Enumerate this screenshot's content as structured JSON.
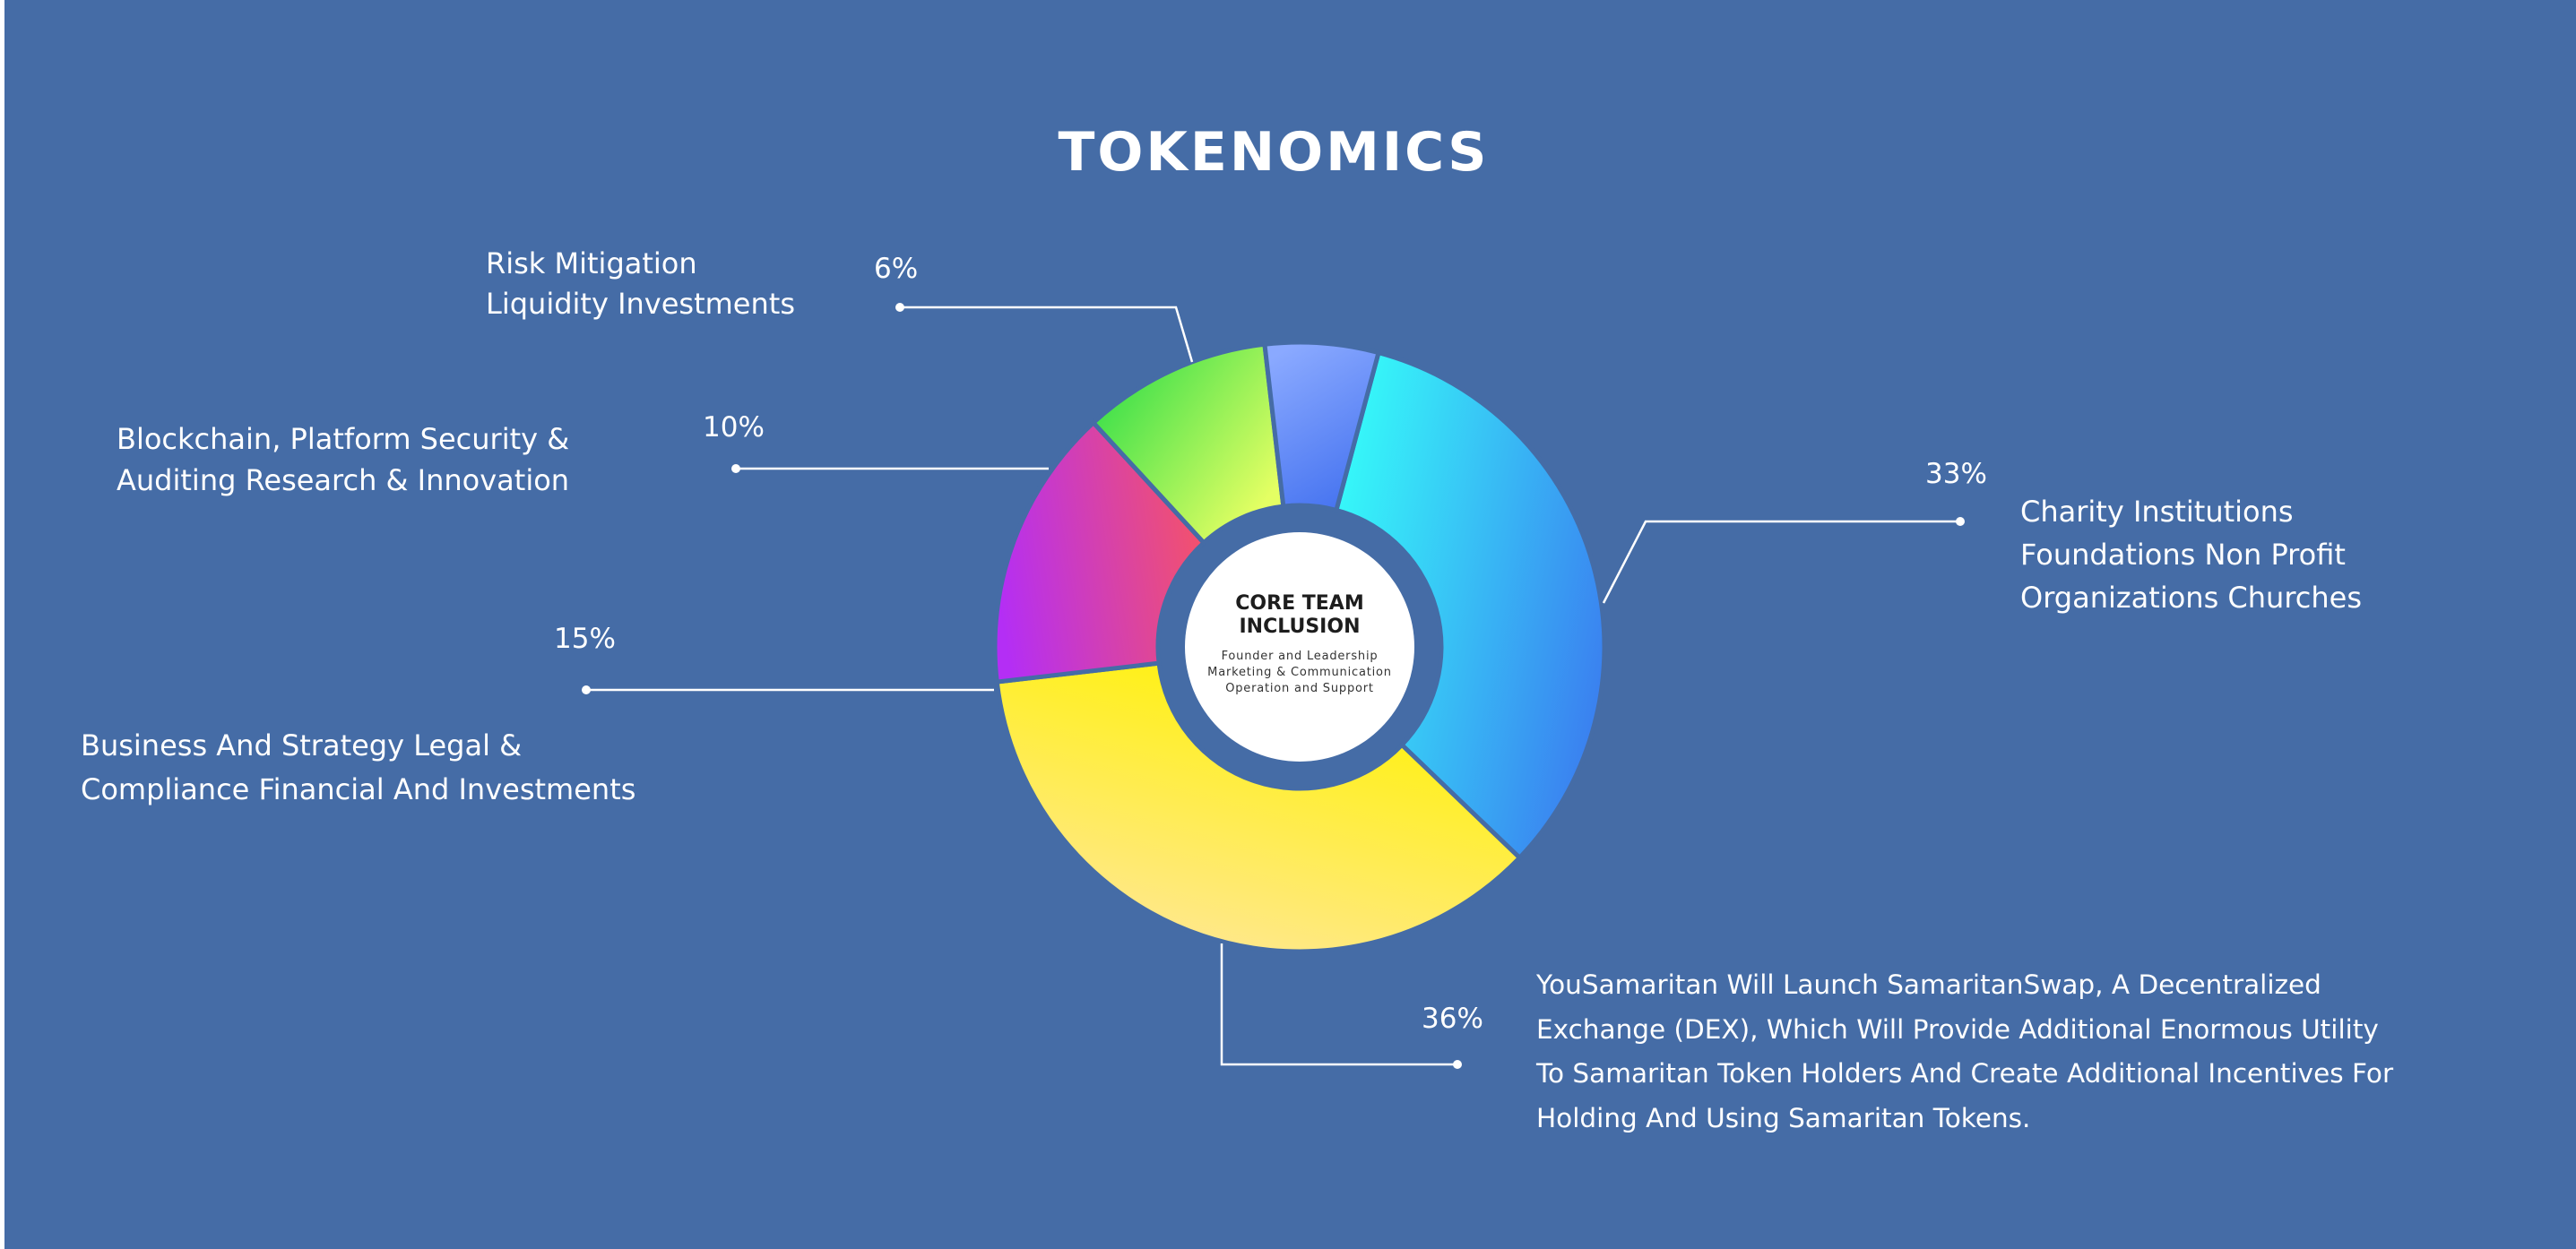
{
  "title": "TOKENOMICS",
  "center": {
    "title_lines": [
      "CORE TEAM",
      "INCLUSION"
    ],
    "sub_lines": [
      "Founder and Leadership",
      "Marketing & Communication",
      "Operation and Support"
    ]
  },
  "chart_data": {
    "type": "pie",
    "title": "TOKENOMICS",
    "donut": true,
    "center_label": "CORE TEAM INCLUSION",
    "slices": [
      {
        "label": "Charity Institutions Foundations Non Profit Organizations Churches",
        "value": 33,
        "value_label": "33%",
        "colors": [
          "#36f8f9",
          "#3a7ef0"
        ],
        "desc_lines": [
          "Charity Institutions",
          "Foundations Non Profit",
          "Organizations Churches"
        ]
      },
      {
        "label": "YouSamaritan Will Launch SamaritanSwap, A Decentralized Exchange (DEX), Which Will Provide Additional Enormous Utility To Samaritan Token Holders And Create Additional Incentives For Holding And Using Samaritan Tokens.",
        "value": 36,
        "value_label": "36%",
        "colors": [
          "#fff200",
          "#ffe79a"
        ],
        "desc_lines": [
          "YouSamaritan Will Launch SamaritanSwap, A Decentralized",
          "Exchange (DEX), Which Will Provide Additional Enormous Utility",
          "To Samaritan Token Holders And Create Additional Incentives For",
          "Holding And Using Samaritan Tokens."
        ]
      },
      {
        "label": "Business And Strategy Legal & Compliance Financial And Investments",
        "value": 15,
        "value_label": "15%",
        "colors": [
          "#b42ef5",
          "#f4526a"
        ],
        "desc_lines": [
          "Business And Strategy Legal &",
          "Compliance Financial And Investments"
        ]
      },
      {
        "label": "Blockchain, Platform Security & Auditing Research & Innovation",
        "value": 10,
        "value_label": "10%",
        "colors": [
          "#3fe04b",
          "#e4ff63"
        ],
        "desc_lines": [
          "Blockchain, Platform Security &",
          "Auditing Research & Innovation"
        ]
      },
      {
        "label": "Risk Mitigation Liquidity Investments",
        "value": 6,
        "value_label": "6%",
        "colors": [
          "#8aa9ff",
          "#4573f0"
        ],
        "desc_lines": [
          "Risk Mitigation",
          "Liquidity Investments"
        ]
      }
    ]
  }
}
